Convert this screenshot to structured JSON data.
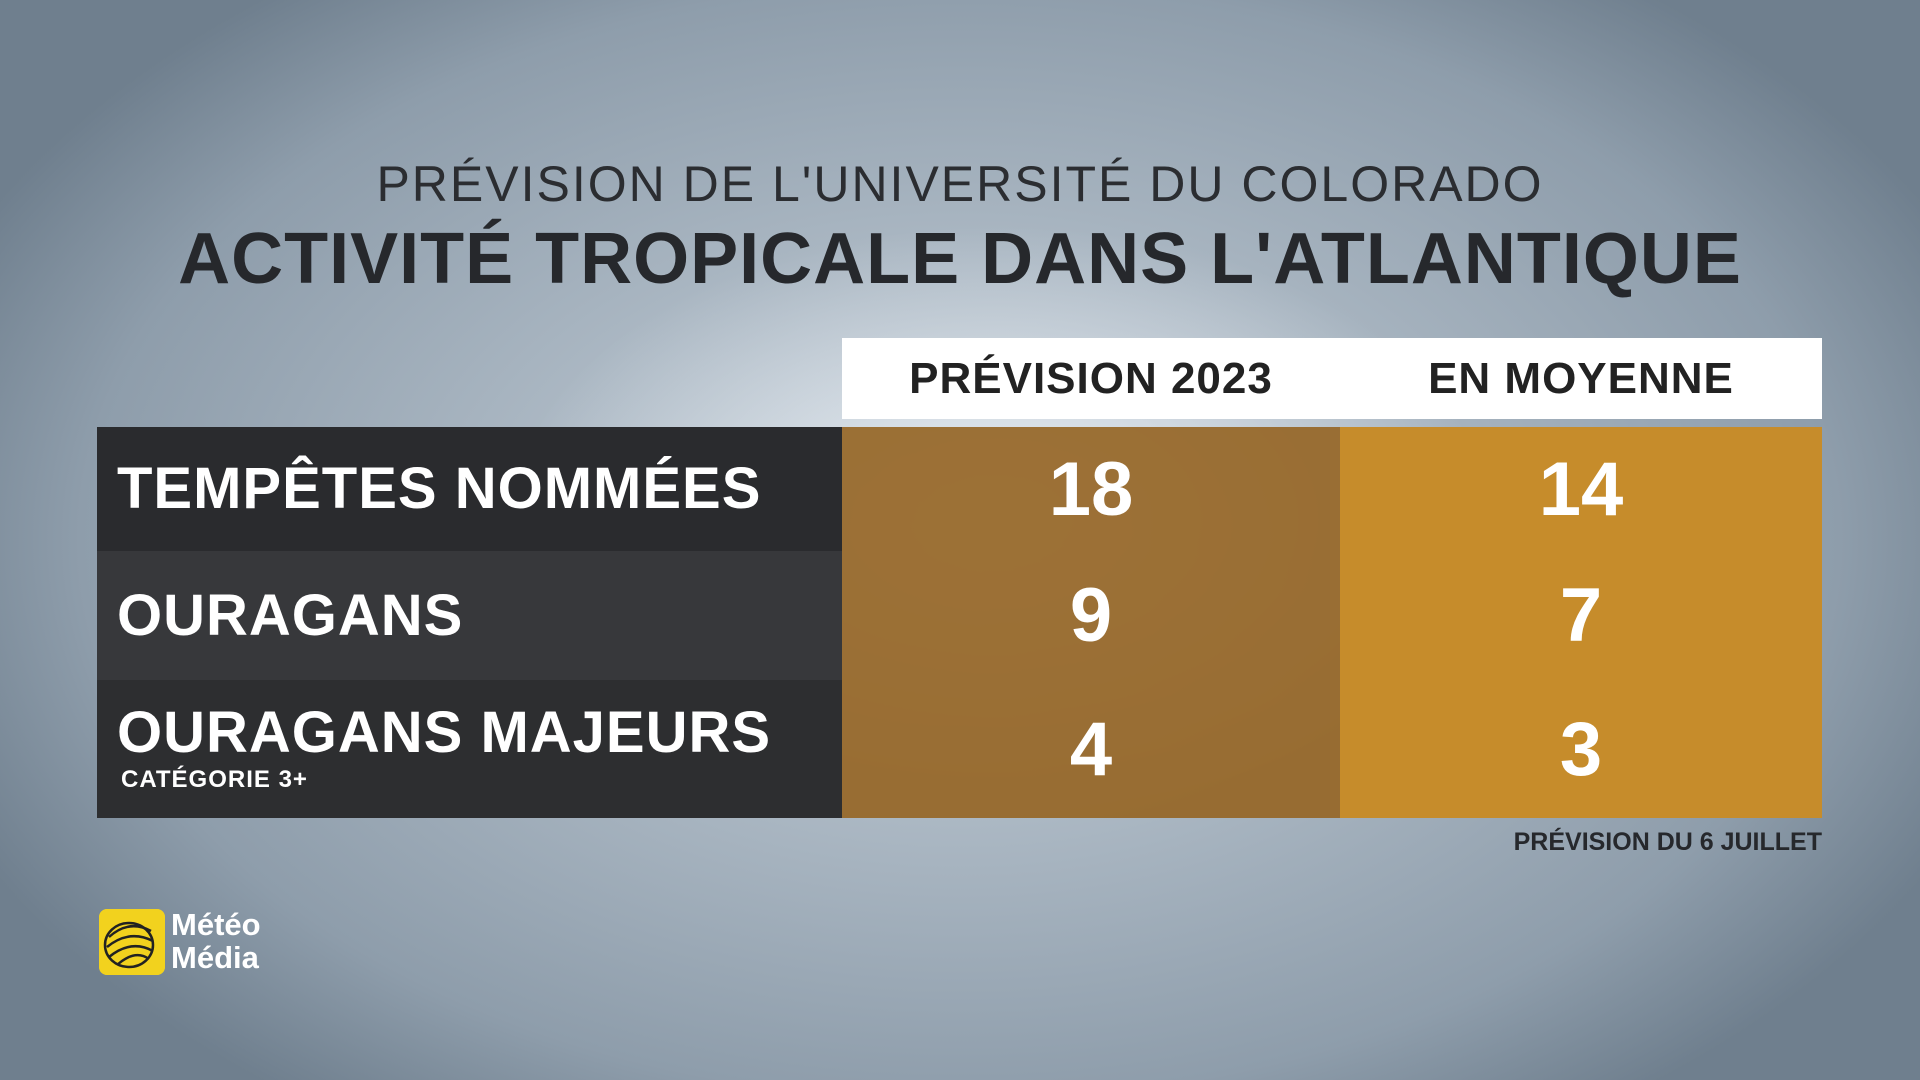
{
  "header": {
    "subtitle": "PRÉVISION DE L'UNIVERSITÉ DU COLORADO",
    "title": "ACTIVITÉ TROPICALE DANS L'ATLANTIQUE"
  },
  "table": {
    "columns": [
      "PRÉVISION 2023",
      "EN MOYENNE"
    ],
    "rows": [
      {
        "label": "TEMPÊTES NOMMÉES",
        "values": [
          "18",
          "14"
        ]
      },
      {
        "label": "OURAGANS",
        "values": [
          "9",
          "7"
        ]
      },
      {
        "label": "OURAGANS MAJEURS",
        "sublabel": "CATÉGORIE 3+",
        "values": [
          "4",
          "3"
        ]
      }
    ]
  },
  "footnote": "PRÉVISION DU 6 JUILLET",
  "logo": {
    "line1": "Météo",
    "line2": "Média"
  }
}
